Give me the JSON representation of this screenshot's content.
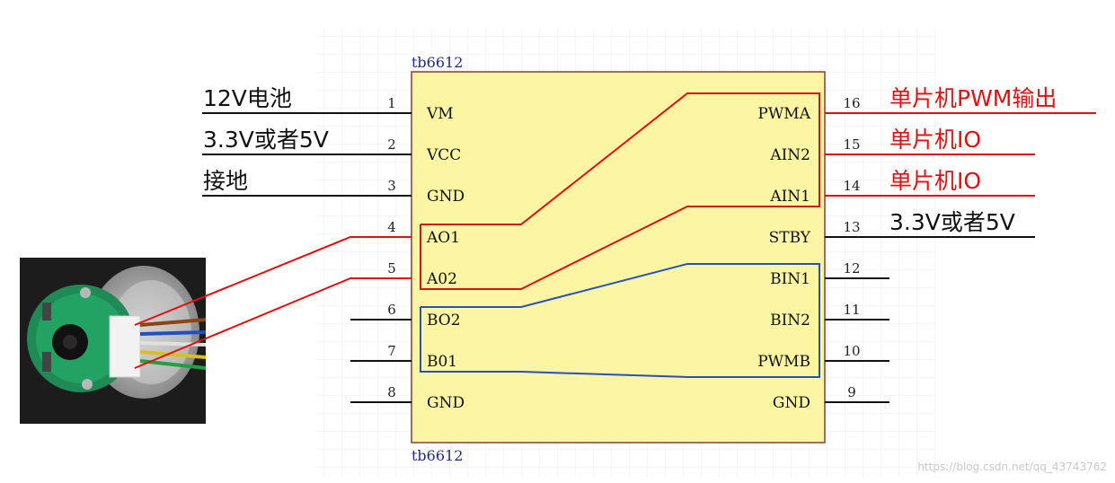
{
  "chip": {
    "label_top": "tb6612",
    "label_bottom": "tb6612"
  },
  "left_pins": [
    {
      "num": "1",
      "name": "VM"
    },
    {
      "num": "2",
      "name": "VCC"
    },
    {
      "num": "3",
      "name": "GND"
    },
    {
      "num": "4",
      "name": "AO1"
    },
    {
      "num": "5",
      "name": "A02"
    },
    {
      "num": "6",
      "name": "BO2"
    },
    {
      "num": "7",
      "name": "B01"
    },
    {
      "num": "8",
      "name": "GND"
    }
  ],
  "right_pins": [
    {
      "num": "16",
      "name": "PWMA"
    },
    {
      "num": "15",
      "name": "AIN2"
    },
    {
      "num": "14",
      "name": "AIN1"
    },
    {
      "num": "13",
      "name": "STBY"
    },
    {
      "num": "12",
      "name": "BIN1"
    },
    {
      "num": "11",
      "name": "BIN2"
    },
    {
      "num": "10",
      "name": "PWMB"
    },
    {
      "num": "9",
      "name": "GND"
    }
  ],
  "annotations": {
    "left": {
      "vm": "12V电池",
      "vcc": "3.3V或者5V",
      "gnd": "接地"
    },
    "right": {
      "pwma": "单片机PWM输出",
      "ain2": "单片机IO",
      "ain1": "单片机IO",
      "stby": "3.3V或者5V"
    }
  },
  "colors": {
    "chip_fill": "#fcf5a3",
    "red_wire": "#e01010",
    "blue_wire": "#2850c0",
    "grid": "#ebebeb"
  },
  "watermark": "https://blog.csdn.net/qq_43743762"
}
